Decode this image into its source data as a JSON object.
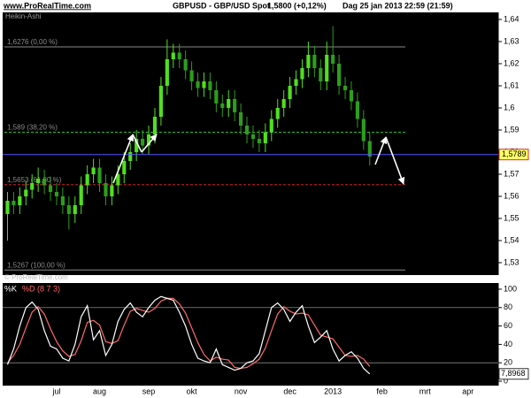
{
  "chart_data": [
    {
      "type": "candlestick",
      "site": "www.ProRealTime.com",
      "title": "GBPUSD - GBP/USD Spot",
      "quote": "1,5800 (+0,12%)",
      "timestamp": "Dag  25 jan 2013 22:59 (21:59)",
      "style_label": "Heikin-Ashi",
      "watermark": "© ProRealTime.com",
      "up_color": "#4fe01f",
      "down_color": "#2c9e1c",
      "open": [
        1.552,
        1.558,
        1.556,
        1.56,
        1.563,
        1.566,
        1.568,
        1.565,
        1.562,
        1.56,
        1.556,
        1.552,
        1.556,
        1.565,
        1.57,
        1.573,
        1.566,
        1.56,
        1.565,
        1.57,
        1.576,
        1.58,
        1.586,
        1.583,
        1.588,
        1.596,
        1.61,
        1.622,
        1.625,
        1.622,
        1.617,
        1.612,
        1.609,
        1.612,
        1.608,
        1.602,
        1.6,
        1.604,
        1.598,
        1.592,
        1.588,
        1.586,
        1.584,
        1.589,
        1.595,
        1.6,
        1.604,
        1.61,
        1.613,
        1.618,
        1.624,
        1.618,
        1.612,
        1.624,
        1.62,
        1.61,
        1.608,
        1.603,
        1.595,
        1.585
      ],
      "high": [
        1.562,
        1.562,
        1.564,
        1.567,
        1.57,
        1.573,
        1.572,
        1.569,
        1.566,
        1.564,
        1.56,
        1.56,
        1.569,
        1.574,
        1.577,
        1.577,
        1.57,
        1.569,
        1.574,
        1.58,
        1.584,
        1.59,
        1.59,
        1.592,
        1.6,
        1.614,
        1.631,
        1.629,
        1.629,
        1.626,
        1.621,
        1.616,
        1.616,
        1.616,
        1.612,
        1.606,
        1.608,
        1.608,
        1.602,
        1.596,
        1.592,
        1.59,
        1.593,
        1.599,
        1.604,
        1.608,
        1.614,
        1.617,
        1.622,
        1.63,
        1.628,
        1.622,
        1.63,
        1.637,
        1.624,
        1.614,
        1.612,
        1.607,
        1.599,
        1.589
      ],
      "low": [
        1.54,
        1.552,
        1.552,
        1.556,
        1.559,
        1.562,
        1.561,
        1.558,
        1.556,
        1.552,
        1.545,
        1.548,
        1.552,
        1.561,
        1.566,
        1.562,
        1.556,
        1.556,
        1.561,
        1.566,
        1.572,
        1.576,
        1.579,
        1.579,
        1.584,
        1.592,
        1.606,
        1.618,
        1.618,
        1.613,
        1.608,
        1.605,
        1.605,
        1.604,
        1.598,
        1.596,
        1.596,
        1.594,
        1.588,
        1.584,
        1.582,
        1.58,
        1.58,
        1.585,
        1.591,
        1.596,
        1.6,
        1.606,
        1.609,
        1.614,
        1.614,
        1.608,
        1.608,
        1.616,
        1.606,
        1.604,
        1.599,
        1.591,
        1.581,
        1.574
      ],
      "close": [
        1.558,
        1.556,
        1.56,
        1.563,
        1.566,
        1.568,
        1.565,
        1.562,
        1.56,
        1.556,
        1.552,
        1.556,
        1.565,
        1.57,
        1.573,
        1.566,
        1.56,
        1.565,
        1.57,
        1.576,
        1.58,
        1.586,
        1.583,
        1.588,
        1.596,
        1.61,
        1.622,
        1.625,
        1.622,
        1.617,
        1.612,
        1.609,
        1.612,
        1.608,
        1.602,
        1.6,
        1.604,
        1.598,
        1.592,
        1.588,
        1.586,
        1.584,
        1.589,
        1.595,
        1.6,
        1.604,
        1.61,
        1.613,
        1.618,
        1.624,
        1.618,
        1.612,
        1.624,
        1.62,
        1.61,
        1.608,
        1.603,
        1.595,
        1.585,
        1.578
      ],
      "levels": [
        {
          "value": 1.6276,
          "label": "1,6276 (0,00 %)",
          "color": "#8a8a8a",
          "dashed": false
        },
        {
          "value": 1.589,
          "label": "1,589 (38,20 %)",
          "color": "#2fc02f",
          "dashed": true
        },
        {
          "value": 1.5653,
          "label": "1,5653 (61,80 %)",
          "color": "#d02020",
          "dashed": true
        },
        {
          "value": 1.5267,
          "label": "1,5267 (100,00 %)",
          "color": "#8a8a8a",
          "dashed": false
        }
      ],
      "current": {
        "value": 1.5789,
        "label": "1,5789",
        "color": "#5555ff"
      },
      "ylim": [
        1.5244,
        1.6432
      ],
      "yticks": [
        {
          "value": 1.64,
          "label": "1,64"
        },
        {
          "value": 1.63,
          "label": "1,63"
        },
        {
          "value": 1.62,
          "label": "1,62"
        },
        {
          "value": 1.61,
          "label": "1,61"
        },
        {
          "value": 1.6,
          "label": "1,6"
        },
        {
          "value": 1.59,
          "label": "1,59"
        },
        {
          "value": 1.58,
          "label": "1,58"
        },
        {
          "value": 1.57,
          "label": "1,57"
        },
        {
          "value": 1.56,
          "label": "1,56"
        },
        {
          "value": 1.55,
          "label": "1,55"
        },
        {
          "value": 1.54,
          "label": "1,54"
        },
        {
          "value": 1.53,
          "label": "1,53"
        }
      ]
    },
    {
      "type": "line",
      "categories": [
        null,
        null,
        null,
        null,
        null,
        null,
        null,
        null,
        "jul",
        null,
        null,
        null,
        null,
        null,
        null,
        "aug",
        null,
        null,
        null,
        null,
        null,
        null,
        null,
        "sep",
        null,
        null,
        null,
        null,
        null,
        null,
        "okt",
        null,
        null,
        null,
        null,
        null,
        null,
        null,
        "nov",
        null,
        null,
        null,
        null,
        null,
        null,
        null,
        "dec",
        null,
        null,
        null,
        null,
        null,
        null,
        "2013",
        null,
        null,
        null,
        null,
        null,
        null,
        null,
        "feb",
        null,
        null,
        null,
        null,
        null,
        null,
        "mrt",
        null,
        null,
        null,
        null,
        null,
        null,
        "apr",
        null,
        null,
        null,
        null
      ],
      "series": [
        {
          "name": "%K",
          "color": "#ffffff",
          "values": [
            18,
            35,
            60,
            80,
            86,
            78,
            55,
            38,
            35,
            25,
            22,
            40,
            70,
            82,
            45,
            55,
            28,
            40,
            65,
            78,
            85,
            75,
            70,
            80,
            88,
            92,
            90,
            88,
            75,
            60,
            40,
            25,
            22,
            20,
            35,
            18,
            15,
            12,
            14,
            20,
            22,
            30,
            55,
            80,
            85,
            78,
            65,
            75,
            82,
            60,
            42,
            48,
            55,
            35,
            22,
            28,
            32,
            25,
            14,
            7.8968,
            null,
            null,
            null,
            null,
            null,
            null,
            null,
            null,
            null,
            null,
            null,
            null,
            null,
            null,
            null,
            null,
            null,
            null,
            null,
            null
          ]
        },
        {
          "name": "%D (8 7 3)",
          "color": "#ff6a6a",
          "values": [
            20,
            28,
            40,
            58,
            75,
            81,
            73,
            57,
            43,
            33,
            27,
            29,
            44,
            64,
            66,
            61,
            43,
            41,
            44,
            61,
            76,
            79,
            77,
            75,
            79,
            87,
            90,
            90,
            84,
            74,
            58,
            42,
            29,
            22,
            26,
            24,
            23,
            15,
            14,
            15,
            19,
            24,
            36,
            55,
            73,
            81,
            76,
            73,
            74,
            72,
            61,
            50,
            48,
            46,
            37,
            28,
            27,
            28,
            24,
            16,
            null,
            null,
            null,
            null,
            null,
            null,
            null,
            null,
            null,
            null,
            null,
            null,
            null,
            null,
            null,
            null,
            null,
            null,
            null,
            null
          ]
        }
      ],
      "levels": [
        80,
        20
      ],
      "current": {
        "value": 7.8968,
        "label": "7,8968"
      },
      "ylim": [
        -4.8,
        106.7
      ],
      "yticks": [
        0,
        20,
        40,
        60,
        80,
        100
      ]
    }
  ]
}
